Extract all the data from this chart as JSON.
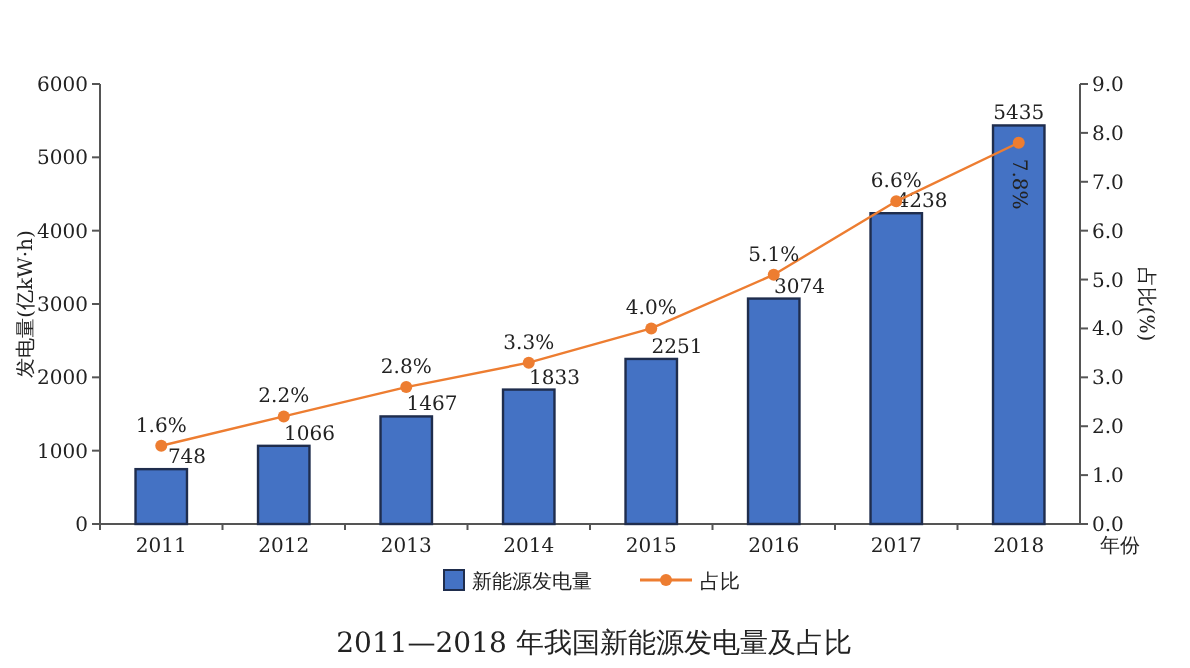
{
  "chart_data": {
    "type": "bar",
    "title": "2011—2018 年我国新能源发电量及占比",
    "xlabel": "年份",
    "ylabel": "发电量(亿kW·h)",
    "y2label": "占比(%)",
    "categories": [
      "2011",
      "2012",
      "2013",
      "2014",
      "2015",
      "2016",
      "2017",
      "2018"
    ],
    "series": [
      {
        "name": "新能源发电量",
        "color": "#4472c4",
        "values": [
          748,
          1066,
          1467,
          1833,
          2251,
          3074,
          4238,
          5435
        ],
        "value_labels": [
          "748",
          "1066",
          "1467",
          "1833",
          "2251",
          "3074",
          "4238",
          "5435"
        ]
      },
      {
        "name": "占比",
        "type": "line",
        "axis": "y2",
        "color": "#ed7d31",
        "marker": "circle",
        "values": [
          1.6,
          2.2,
          2.8,
          3.3,
          4.0,
          5.1,
          6.6,
          7.8
        ],
        "value_labels": [
          "1.6%",
          "2.2%",
          "2.8%",
          "3.3%",
          "4.0%",
          "5.1%",
          "6.6%",
          "7.8%"
        ]
      }
    ],
    "ylim": [
      0,
      6000
    ],
    "yticks": [
      0,
      1000,
      2000,
      3000,
      4000,
      5000,
      6000
    ],
    "y2lim": [
      0,
      9
    ],
    "y2ticks": [
      {
        "value": 0,
        "label": "0.0"
      },
      {
        "value": 1,
        "label": "1.0"
      },
      {
        "value": 2,
        "label": "2.0"
      },
      {
        "value": 3,
        "label": "3.0"
      },
      {
        "value": 4,
        "label": "4.0"
      },
      {
        "value": 5,
        "label": "5.0"
      },
      {
        "value": 6,
        "label": "6.0"
      },
      {
        "value": 7,
        "label": "7.0"
      },
      {
        "value": 8,
        "label": "8.0"
      },
      {
        "value": 9,
        "label": "9.0"
      }
    ],
    "legend": "bottom"
  }
}
